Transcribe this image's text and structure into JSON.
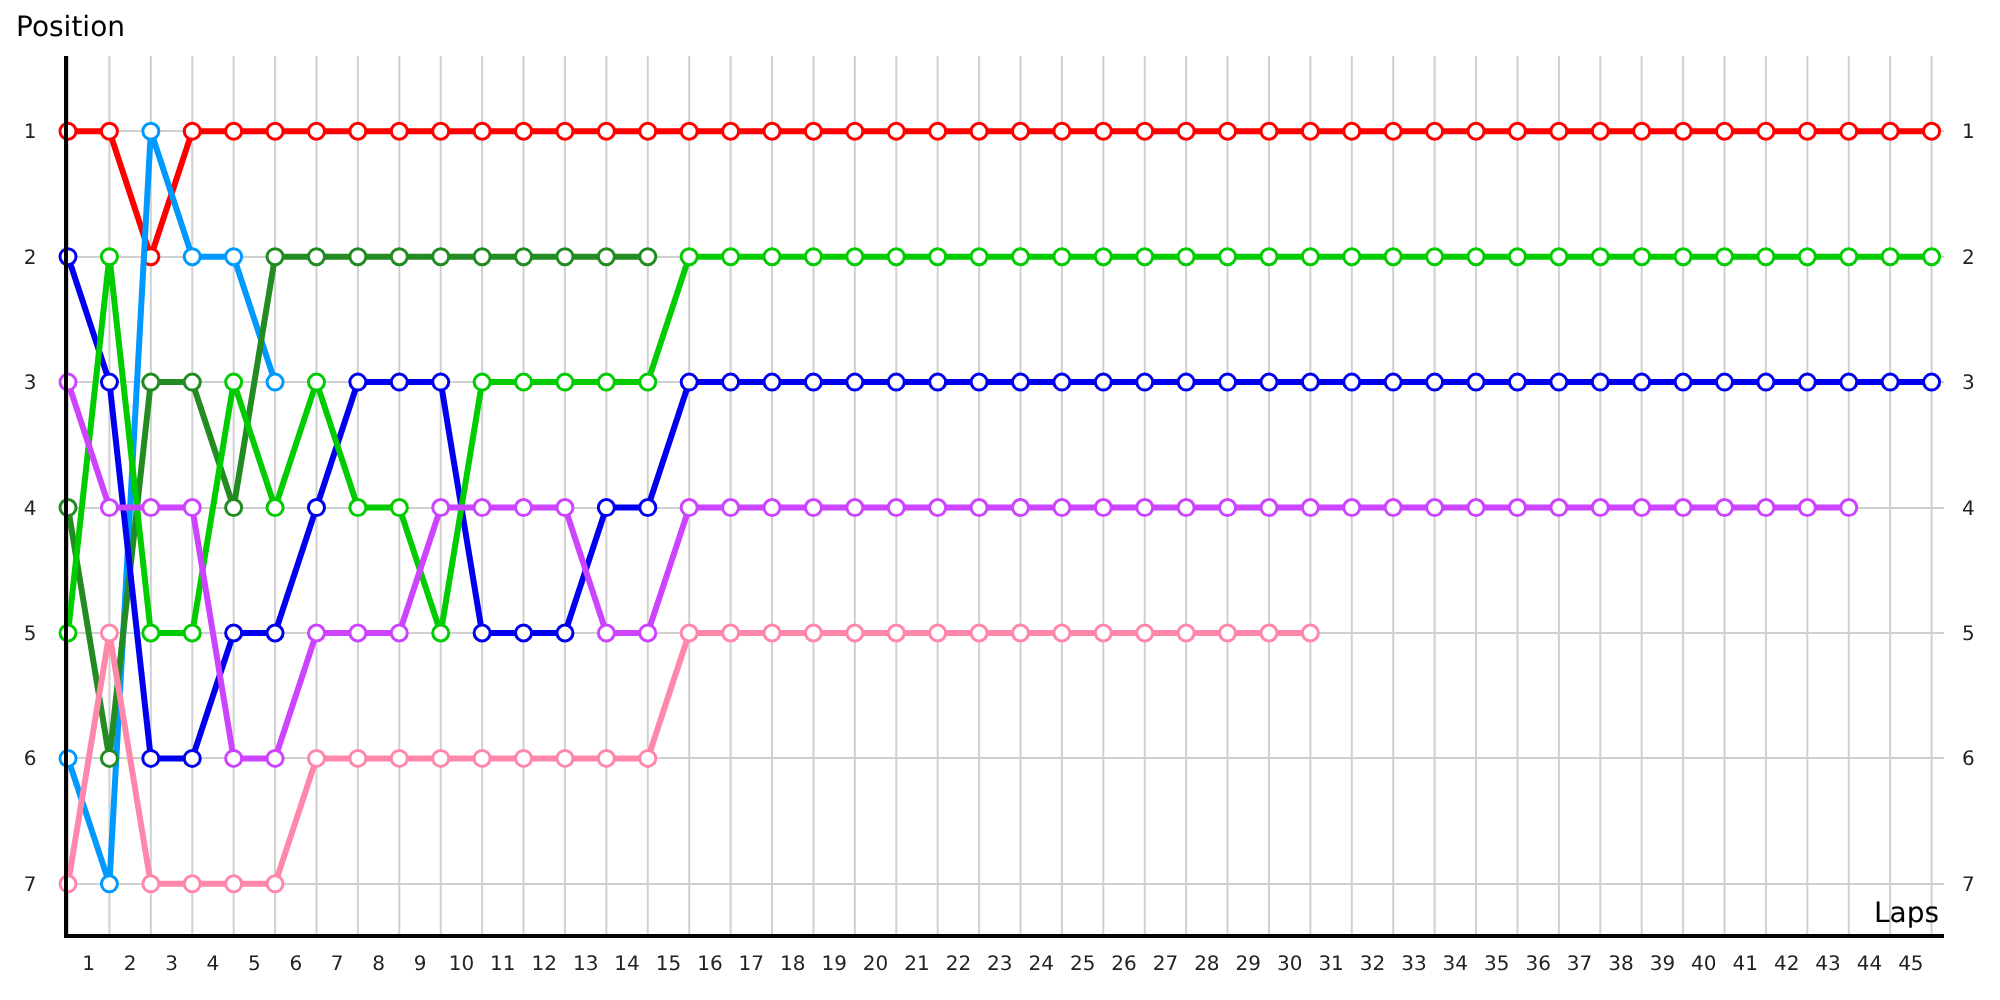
{
  "chart_data": {
    "type": "line",
    "xlabel": "Laps",
    "ylabel": "Position",
    "series": [
      {
        "color": "#ff0000",
        "x": [
          0,
          1,
          2,
          3,
          4,
          5,
          6,
          7,
          8,
          9,
          10,
          11,
          12,
          13,
          14,
          15,
          16,
          17,
          18,
          19,
          20,
          21,
          22,
          23,
          24,
          25,
          26,
          27,
          28,
          29,
          30,
          31,
          32,
          33,
          34,
          35,
          36,
          37,
          38,
          39,
          40,
          41,
          42,
          43,
          44,
          45
        ],
        "values": [
          1,
          1,
          2,
          1,
          1,
          1,
          1,
          1,
          1,
          1,
          1,
          1,
          1,
          1,
          1,
          1,
          1,
          1,
          1,
          1,
          1,
          1,
          1,
          1,
          1,
          1,
          1,
          1,
          1,
          1,
          1,
          1,
          1,
          1,
          1,
          1,
          1,
          1,
          1,
          1,
          1,
          1,
          1,
          1,
          1,
          1
        ]
      },
      {
        "color": "#0099ff",
        "x": [
          0,
          1,
          2,
          3,
          4,
          5
        ],
        "values": [
          6,
          7,
          1,
          2,
          2,
          3
        ]
      },
      {
        "color": "#228b22",
        "x": [
          0,
          1,
          2,
          3,
          4,
          5,
          6,
          7,
          8,
          9,
          10,
          11,
          12,
          13,
          14
        ],
        "values": [
          4,
          6,
          3,
          3,
          4,
          2,
          2,
          2,
          2,
          2,
          2,
          2,
          2,
          2,
          2
        ]
      },
      {
        "color": "#0000ee",
        "x": [
          0,
          1,
          2,
          3,
          4,
          5,
          6,
          7,
          8,
          9,
          10,
          11,
          12,
          13,
          14,
          15,
          16,
          17,
          18,
          19,
          20,
          21,
          22,
          23,
          24,
          25,
          26,
          27,
          28,
          29,
          30,
          31,
          32,
          33,
          34,
          35,
          36,
          37,
          38,
          39,
          40,
          41,
          42,
          43,
          44,
          45
        ],
        "values": [
          2,
          3,
          6,
          6,
          5,
          5,
          4,
          3,
          3,
          3,
          5,
          5,
          5,
          4,
          4,
          3,
          3,
          3,
          3,
          3,
          3,
          3,
          3,
          3,
          3,
          3,
          3,
          3,
          3,
          3,
          3,
          3,
          3,
          3,
          3,
          3,
          3,
          3,
          3,
          3,
          3,
          3,
          3,
          3,
          3,
          3
        ]
      },
      {
        "color": "#00cc00",
        "x": [
          0,
          1,
          2,
          3,
          4,
          5,
          6,
          7,
          8,
          9,
          10,
          11,
          12,
          13,
          14,
          15,
          16,
          17,
          18,
          19,
          20,
          21,
          22,
          23,
          24,
          25,
          26,
          27,
          28,
          29,
          30,
          31,
          32,
          33,
          34,
          35,
          36,
          37,
          38,
          39,
          40,
          41,
          42,
          43,
          44,
          45
        ],
        "values": [
          5,
          2,
          5,
          5,
          3,
          4,
          3,
          4,
          4,
          5,
          3,
          3,
          3,
          3,
          3,
          2,
          2,
          2,
          2,
          2,
          2,
          2,
          2,
          2,
          2,
          2,
          2,
          2,
          2,
          2,
          2,
          2,
          2,
          2,
          2,
          2,
          2,
          2,
          2,
          2,
          2,
          2,
          2,
          2,
          2,
          2
        ]
      },
      {
        "color": "#cc44ff",
        "x": [
          0,
          1,
          2,
          3,
          4,
          5,
          6,
          7,
          8,
          9,
          10,
          11,
          12,
          13,
          14,
          15,
          16,
          17,
          18,
          19,
          20,
          21,
          22,
          23,
          24,
          25,
          26,
          27,
          28,
          29,
          30,
          31,
          32,
          33,
          34,
          35,
          36,
          37,
          38,
          39,
          40,
          41,
          42,
          43
        ],
        "values": [
          3,
          4,
          4,
          4,
          6,
          6,
          5,
          5,
          5,
          4,
          4,
          4,
          4,
          5,
          5,
          4,
          4,
          4,
          4,
          4,
          4,
          4,
          4,
          4,
          4,
          4,
          4,
          4,
          4,
          4,
          4,
          4,
          4,
          4,
          4,
          4,
          4,
          4,
          4,
          4,
          4,
          4,
          4,
          4
        ]
      },
      {
        "color": "#ff88aa",
        "x": [
          0,
          1,
          2,
          3,
          4,
          5,
          6,
          7,
          8,
          9,
          10,
          11,
          12,
          13,
          14,
          15,
          16,
          17,
          18,
          19,
          20,
          21,
          22,
          23,
          24,
          25,
          26,
          27,
          28,
          29,
          30
        ],
        "values": [
          7,
          5,
          7,
          7,
          7,
          7,
          6,
          6,
          6,
          6,
          6,
          6,
          6,
          6,
          6,
          5,
          5,
          5,
          5,
          5,
          5,
          5,
          5,
          5,
          5,
          5,
          5,
          5,
          5,
          5,
          5
        ]
      }
    ],
    "xlim": [
      0,
      45.3
    ],
    "xticks": [
      {
        "value": 0.5,
        "label": "1"
      },
      {
        "value": 1.5,
        "label": "2"
      },
      {
        "value": 2.5,
        "label": "3"
      },
      {
        "value": 3.5,
        "label": "4"
      },
      {
        "value": 4.5,
        "label": "5"
      },
      {
        "value": 5.5,
        "label": "6"
      },
      {
        "value": 6.5,
        "label": "7"
      },
      {
        "value": 7.5,
        "label": "8"
      },
      {
        "value": 8.5,
        "label": "9"
      },
      {
        "value": 9.5,
        "label": "10"
      },
      {
        "value": 10.5,
        "label": "11"
      },
      {
        "value": 11.5,
        "label": "12"
      },
      {
        "value": 12.5,
        "label": "13"
      },
      {
        "value": 13.5,
        "label": "14"
      },
      {
        "value": 14.5,
        "label": "15"
      },
      {
        "value": 15.5,
        "label": "16"
      },
      {
        "value": 16.5,
        "label": "17"
      },
      {
        "value": 17.5,
        "label": "18"
      },
      {
        "value": 18.5,
        "label": "19"
      },
      {
        "value": 19.5,
        "label": "20"
      },
      {
        "value": 20.5,
        "label": "21"
      },
      {
        "value": 21.5,
        "label": "22"
      },
      {
        "value": 22.5,
        "label": "23"
      },
      {
        "value": 23.5,
        "label": "24"
      },
      {
        "value": 24.5,
        "label": "25"
      },
      {
        "value": 25.5,
        "label": "26"
      },
      {
        "value": 26.5,
        "label": "27"
      },
      {
        "value": 27.5,
        "label": "28"
      },
      {
        "value": 28.5,
        "label": "29"
      },
      {
        "value": 29.5,
        "label": "30"
      },
      {
        "value": 30.5,
        "label": "31"
      },
      {
        "value": 31.5,
        "label": "32"
      },
      {
        "value": 32.5,
        "label": "33"
      },
      {
        "value": 33.5,
        "label": "34"
      },
      {
        "value": 34.5,
        "label": "35"
      },
      {
        "value": 35.5,
        "label": "36"
      },
      {
        "value": 36.5,
        "label": "37"
      },
      {
        "value": 37.5,
        "label": "38"
      },
      {
        "value": 38.5,
        "label": "39"
      },
      {
        "value": 39.5,
        "label": "40"
      },
      {
        "value": 40.5,
        "label": "41"
      },
      {
        "value": 41.5,
        "label": "42"
      },
      {
        "value": 42.5,
        "label": "43"
      },
      {
        "value": 43.5,
        "label": "44"
      },
      {
        "value": 44.5,
        "label": "45"
      }
    ],
    "ylim": [
      7.4,
      0.4
    ],
    "yticks": [
      {
        "value": 1,
        "label": "1"
      },
      {
        "value": 2,
        "label": "2"
      },
      {
        "value": 3,
        "label": "3"
      },
      {
        "value": 4,
        "label": "4"
      },
      {
        "value": 5,
        "label": "5"
      },
      {
        "value": 6,
        "label": "6"
      },
      {
        "value": 7,
        "label": "7"
      }
    ],
    "y2lim": [
      7.4,
      0.4
    ],
    "y2ticks": [
      1,
      2,
      3,
      4,
      5,
      6,
      7
    ],
    "grid": true,
    "marker": "circle",
    "line_style": "solid"
  }
}
